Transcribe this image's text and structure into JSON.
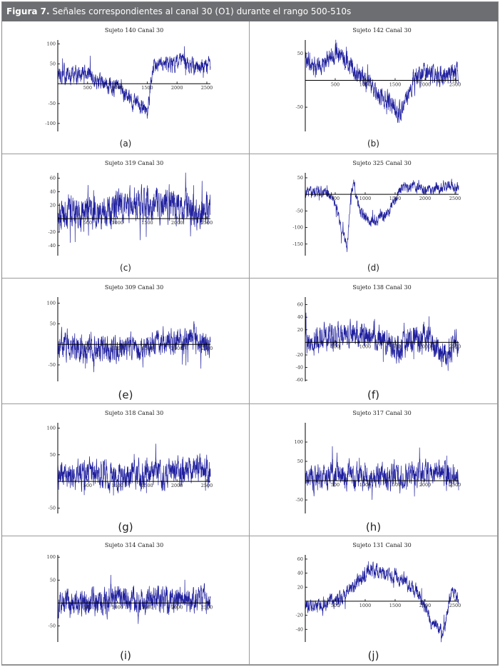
{
  "figure": {
    "label": "Figura 7.",
    "title": "Señales correspondientes al canal 30 (O1) durante el rango 500-510s"
  },
  "colors": {
    "header_bg": "#6d6e71",
    "signal": "#1f1f9e",
    "axis": "#000000"
  },
  "chart_data": [
    {
      "type": "line",
      "title": "Sujeto 140 Canal 30",
      "caption": "(a)",
      "xlim": [
        0,
        2560
      ],
      "ylim": [
        -120,
        110
      ],
      "xticks": [
        500,
        1000,
        1500,
        2000,
        2500
      ],
      "xtick_labels": [
        "500",
        "1000",
        "1500",
        "2000",
        "2500"
      ],
      "yticks": [
        100,
        50,
        -50,
        -100
      ],
      "ytick_labels": [
        "100",
        "50",
        "-50",
        "-100"
      ],
      "signal_summary": {
        "x": [
          0,
          200,
          400,
          600,
          800,
          1000,
          1200,
          1400,
          1500,
          1600,
          1700,
          1800,
          2000,
          2200,
          2400,
          2560
        ],
        "y": [
          25,
          20,
          30,
          15,
          0,
          -10,
          -40,
          -60,
          -70,
          40,
          65,
          50,
          55,
          45,
          40,
          50
        ],
        "noise_amplitude": 25
      }
    },
    {
      "type": "line",
      "title": "Sujeto 142 Canal 30",
      "caption": "(b)",
      "xlim": [
        0,
        2560
      ],
      "ylim": [
        -95,
        75
      ],
      "xticks": [
        500,
        1000,
        1500,
        2000,
        2500
      ],
      "xtick_labels": [
        "500",
        "1000",
        "1500",
        "2000",
        "2500"
      ],
      "yticks": [
        50,
        -50
      ],
      "ytick_labels": [
        "50",
        "-50"
      ],
      "signal_summary": {
        "x": [
          0,
          200,
          400,
          600,
          800,
          1000,
          1200,
          1400,
          1600,
          1800,
          2000,
          2200,
          2400,
          2560
        ],
        "y": [
          40,
          25,
          45,
          50,
          20,
          5,
          -25,
          -40,
          -60,
          0,
          15,
          10,
          10,
          15
        ],
        "noise_amplitude": 22
      }
    },
    {
      "type": "line",
      "title": "Sujeto 319 Canal 30",
      "caption": "(c)",
      "xlim": [
        0,
        2560
      ],
      "ylim": [
        -55,
        68
      ],
      "xticks": [
        500,
        1000,
        1500,
        2000,
        2500
      ],
      "xtick_labels": [
        "500",
        "1000",
        "1500",
        "2000",
        "2500"
      ],
      "yticks": [
        60,
        40,
        20,
        -20,
        -40
      ],
      "ytick_labels": [
        "60",
        "40",
        "20",
        "-20",
        "-40"
      ],
      "signal_summary": {
        "x": [
          0,
          500,
          1000,
          1500,
          2000,
          2560
        ],
        "y": [
          5,
          10,
          15,
          20,
          15,
          10
        ],
        "noise_amplitude": 30
      }
    },
    {
      "type": "line",
      "title": "Sujeto 325 Canal 30",
      "caption": "(d)",
      "xlim": [
        0,
        2560
      ],
      "ylim": [
        -185,
        65
      ],
      "xticks": [
        500,
        1000,
        1500,
        2000,
        2500
      ],
      "xtick_labels": [
        "500",
        "1000",
        "1500",
        "2000",
        "2500"
      ],
      "yticks": [
        50,
        -50,
        -100,
        -150
      ],
      "ytick_labels": [
        "50",
        "-50",
        "-100",
        "-150"
      ],
      "signal_summary": {
        "x": [
          0,
          200,
          400,
          500,
          600,
          700,
          760,
          800,
          900,
          1000,
          1200,
          1400,
          1600,
          1800,
          2000,
          2200,
          2400,
          2560
        ],
        "y": [
          5,
          10,
          0,
          -20,
          -100,
          -160,
          0,
          40,
          -40,
          -70,
          -80,
          -50,
          20,
          25,
          10,
          20,
          25,
          20
        ],
        "noise_amplitude": 20
      }
    },
    {
      "type": "line",
      "title": "Sujeto 309 Canal 30",
      "caption": "(e)",
      "xlim": [
        0,
        2560
      ],
      "ylim": [
        -90,
        115
      ],
      "xticks": [
        500,
        1000,
        1500,
        2000,
        2500
      ],
      "xtick_labels": [
        "500",
        "1000",
        "1500",
        "2000",
        "2500"
      ],
      "yticks": [
        100,
        50,
        -50
      ],
      "ytick_labels": [
        "100",
        "50",
        "-50"
      ],
      "signal_summary": {
        "x": [
          0,
          500,
          1000,
          1500,
          2000,
          2560
        ],
        "y": [
          0,
          -10,
          -10,
          -5,
          15,
          5
        ],
        "noise_amplitude": 40
      }
    },
    {
      "type": "line",
      "title": "Sujeto 138 Canal 30",
      "caption": "(f)",
      "xlim": [
        0,
        2560
      ],
      "ylim": [
        -62,
        72
      ],
      "xticks": [
        500,
        1000,
        1500,
        2000,
        2500
      ],
      "xtick_labels": [
        "500",
        "1000",
        "1500",
        "2000",
        "2500"
      ],
      "yticks": [
        60,
        40,
        20,
        -20,
        -40,
        -60
      ],
      "ytick_labels": [
        "60",
        "40",
        "20",
        "-20",
        "-40",
        "-60"
      ],
      "signal_summary": {
        "x": [
          0,
          500,
          1000,
          1200,
          1500,
          2000,
          2300,
          2560
        ],
        "y": [
          0,
          10,
          15,
          10,
          -10,
          10,
          -20,
          0
        ],
        "noise_amplitude": 25
      }
    },
    {
      "type": "line",
      "title": "Sujeto 318 Canal 30",
      "caption": "(g)",
      "xlim": [
        0,
        2560
      ],
      "ylim": [
        -60,
        110
      ],
      "xticks": [
        500,
        1000,
        1500,
        2000,
        2500
      ],
      "xtick_labels": [
        "500",
        "1000",
        "1500",
        "2000",
        "2500"
      ],
      "yticks": [
        100,
        50,
        -50
      ],
      "ytick_labels": [
        "100",
        "50",
        "-50"
      ],
      "signal_summary": {
        "x": [
          0,
          500,
          1000,
          1500,
          2000,
          2400,
          2560
        ],
        "y": [
          10,
          15,
          10,
          15,
          15,
          30,
          15
        ],
        "noise_amplitude": 30
      }
    },
    {
      "type": "line",
      "title": "Sujeto 317 Canal 30",
      "caption": "(h)",
      "xlim": [
        0,
        2560
      ],
      "ylim": [
        -85,
        150
      ],
      "xticks": [
        500,
        1000,
        1500,
        2000,
        2500
      ],
      "xtick_labels": [
        "500",
        "1000",
        "1500",
        "2000",
        "2500"
      ],
      "yticks": [
        100,
        50,
        -50
      ],
      "ytick_labels": [
        "100",
        "50",
        "-50"
      ],
      "signal_summary": {
        "x": [
          0,
          500,
          1000,
          1500,
          2000,
          2560
        ],
        "y": [
          10,
          15,
          10,
          10,
          15,
          10
        ],
        "noise_amplitude": 40
      }
    },
    {
      "type": "line",
      "title": "Sujeto 314 Canal 30",
      "caption": "(i)",
      "xlim": [
        0,
        2560
      ],
      "ylim": [
        -85,
        105
      ],
      "xticks": [
        500,
        1000,
        1500,
        2000,
        2500
      ],
      "xtick_labels": [
        "500",
        "1000",
        "1500",
        "2000",
        "2500"
      ],
      "yticks": [
        100,
        50,
        -50
      ],
      "ytick_labels": [
        "100",
        "50",
        "-50"
      ],
      "signal_summary": {
        "x": [
          0,
          500,
          1000,
          1500,
          2000,
          2560
        ],
        "y": [
          0,
          5,
          5,
          5,
          10,
          5
        ],
        "noise_amplitude": 35
      }
    },
    {
      "type": "line",
      "title": "Sujeto 131 Canal 30",
      "caption": "(j)",
      "xlim": [
        0,
        2560
      ],
      "ylim": [
        -58,
        66
      ],
      "xticks": [
        500,
        1000,
        1500,
        2000,
        2500
      ],
      "xtick_labels": [
        "500",
        "1000",
        "1500",
        "2000",
        "2500"
      ],
      "yticks": [
        60,
        40,
        20,
        -20,
        -40
      ],
      "ytick_labels": [
        "60",
        "40",
        "20",
        "-20",
        "-40"
      ],
      "signal_summary": {
        "x": [
          0,
          300,
          600,
          900,
          1100,
          1300,
          1500,
          1700,
          1900,
          2100,
          2300,
          2450,
          2560
        ],
        "y": [
          -10,
          -5,
          5,
          30,
          45,
          40,
          35,
          25,
          10,
          -30,
          -45,
          20,
          0
        ],
        "noise_amplitude": 12
      }
    }
  ]
}
